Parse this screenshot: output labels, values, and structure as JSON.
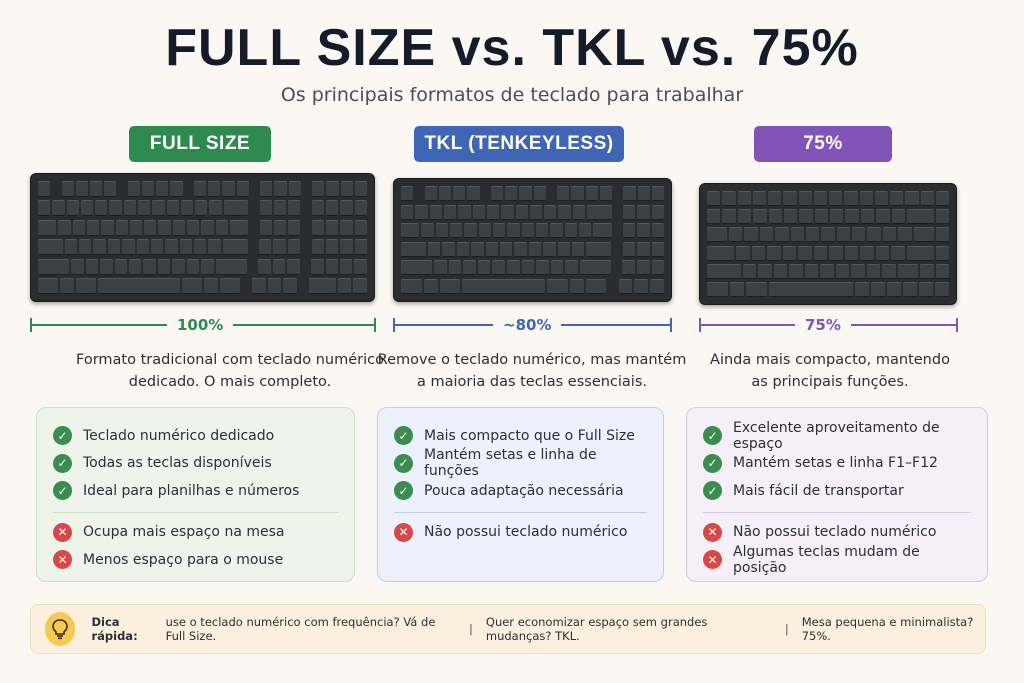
{
  "title": "FULL SIZE vs. TKL vs. 75%",
  "subtitle": "Os principais formatos de teclado para trabalhar",
  "colors": {
    "full": "#2f8a52",
    "tkl": "#3f65b4",
    "p75": "#8155b8"
  },
  "columns": [
    {
      "pill": "FULL SIZE",
      "percent": "100%",
      "desc_line1": "Formato tradicional com teclado numérico",
      "desc_line2": "dedicado. O mais completo.",
      "pros": [
        "Teclado numérico dedicado",
        "Todas as teclas disponíveis",
        "Ideal para planilhas e números"
      ],
      "cons": [
        "Ocupa mais espaço na mesa",
        "Menos espaço para o mouse"
      ]
    },
    {
      "pill": "TKL (TENKEYLESS)",
      "percent": "~80%",
      "desc_line1": "Remove o teclado numérico, mas mantém",
      "desc_line2": "a maioria das teclas essenciais.",
      "pros": [
        "Mais compacto que o Full Size",
        "Mantém setas e linha de funções",
        "Pouca adaptação necessária"
      ],
      "cons": [
        "Não possui teclado numérico"
      ]
    },
    {
      "pill": "75%",
      "percent": "75%",
      "desc_line1": "Ainda mais compacto, mantendo",
      "desc_line2": "as principais funções.",
      "pros": [
        "Excelente aproveitamento de espaço",
        "Mantém setas e linha F1–F12",
        "Mais fácil de transportar"
      ],
      "cons": [
        "Não possui teclado numérico",
        "Algumas teclas mudam de posição"
      ]
    }
  ],
  "tip": {
    "label": "Dica rápida:",
    "part1": "use o teclado numérico com frequência? Vá de Full Size.",
    "part2": "Quer economizar espaço sem grandes mudanças? TKL.",
    "part3": "Mesa pequena e minimalista? 75%."
  },
  "icons": {
    "check": "check-icon",
    "cross": "cross-icon",
    "bulb": "lightbulb-icon"
  }
}
